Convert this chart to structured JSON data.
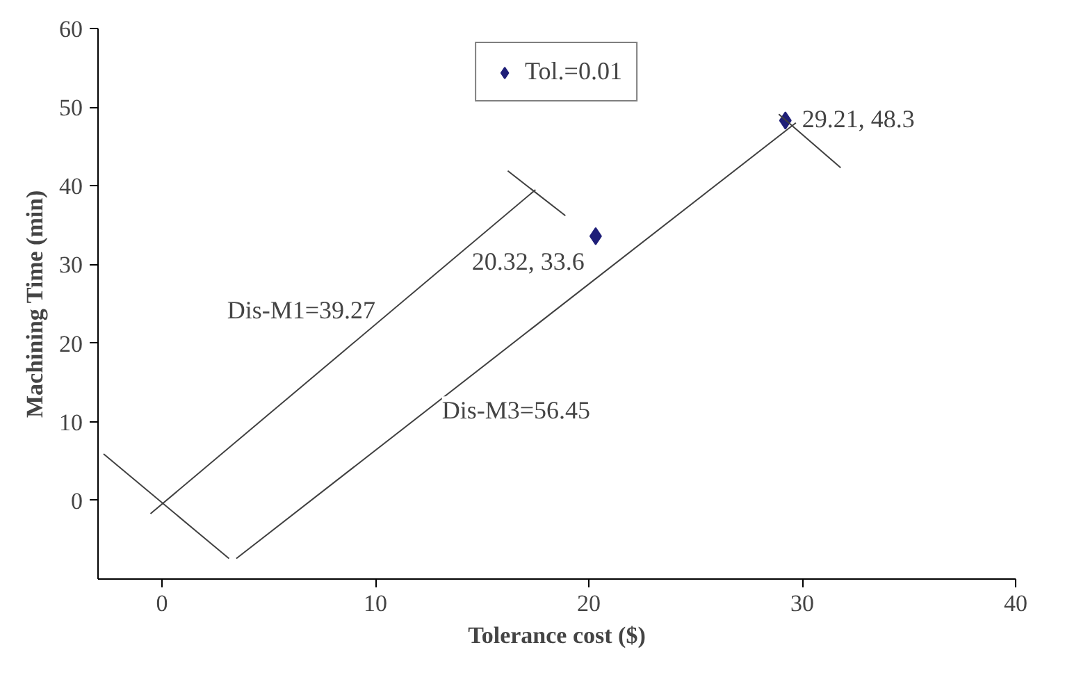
{
  "chart_data": {
    "type": "scatter",
    "xlabel": "Tolerance cost ($)",
    "ylabel": "Machining Time (min)",
    "xlim": [
      -3,
      40
    ],
    "ylim": [
      -10,
      60
    ],
    "xticks": [
      0,
      10,
      20,
      30,
      40
    ],
    "yticks": [
      0,
      10,
      20,
      30,
      40,
      50,
      60
    ],
    "grid": false,
    "legend": "top",
    "series": [
      {
        "name": "Tol.=0.01",
        "marker": "diamond",
        "color": "#1f1f78",
        "x": [
          20.32,
          29.21
        ],
        "values": [
          33.6,
          48.3
        ],
        "value_labels": [
          "20.32, 33.6",
          "29.21, 48.3"
        ]
      },
      {
        "type": "line",
        "color": "#404040",
        "x": [
          -0.54,
          17.5
        ],
        "values": [
          -1.7,
          39.5
        ]
      },
      {
        "type": "line",
        "color": "#404040",
        "x": [
          3.48,
          29.7
        ],
        "values": [
          -7.4,
          48.0
        ]
      },
      {
        "type": "line",
        "color": "#404040",
        "x": [
          -2.74,
          3.14
        ],
        "values": [
          5.9,
          -7.4
        ]
      },
      {
        "type": "line",
        "color": "#404040",
        "x": [
          16.2,
          18.9
        ],
        "values": [
          41.9,
          36.2
        ]
      },
      {
        "type": "line",
        "color": "#404040",
        "x": [
          28.9,
          31.8
        ],
        "values": [
          49.1,
          42.3
        ]
      }
    ],
    "annotations": [
      "Dis-M1=39.27",
      "Dis-M3=56.45"
    ]
  }
}
